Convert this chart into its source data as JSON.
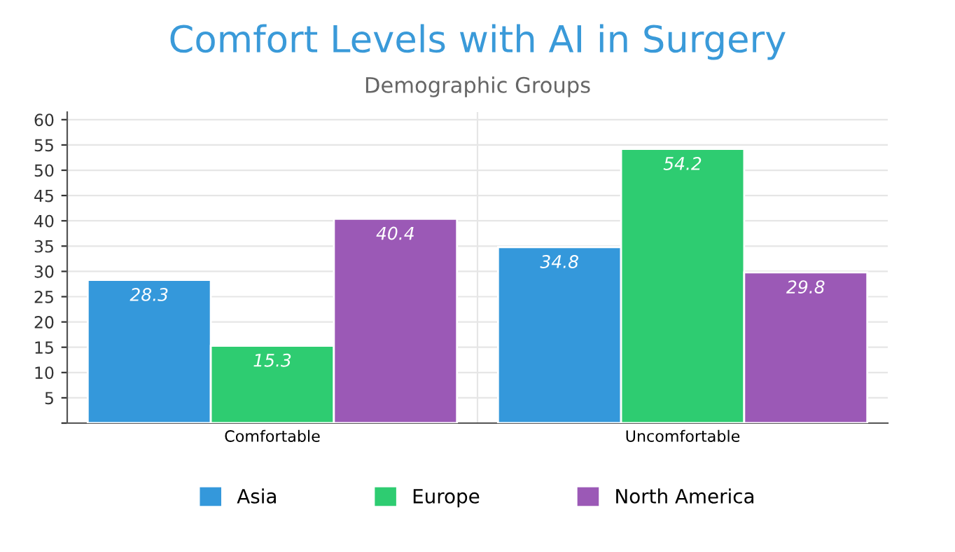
{
  "chart_data": {
    "type": "bar",
    "title": "Comfort Levels with AI in Surgery",
    "subtitle": "Demographic Groups",
    "categories": [
      "Comfortable",
      "Uncomfortable"
    ],
    "series": [
      {
        "name": "Asia",
        "color": "#3498db",
        "values": [
          28.3,
          34.8
        ]
      },
      {
        "name": "Europe",
        "color": "#2ecc71",
        "values": [
          15.3,
          54.2
        ]
      },
      {
        "name": "North America",
        "color": "#9b59b6",
        "values": [
          40.4,
          29.8
        ]
      }
    ],
    "ylim": [
      0,
      61.5
    ],
    "yticks": [
      {
        "value": 0,
        "label": null
      },
      5,
      10,
      15,
      20,
      25,
      30,
      35,
      40,
      45,
      50,
      55,
      60
    ],
    "grid": true,
    "legend": "bottom",
    "data_labels": true
  }
}
